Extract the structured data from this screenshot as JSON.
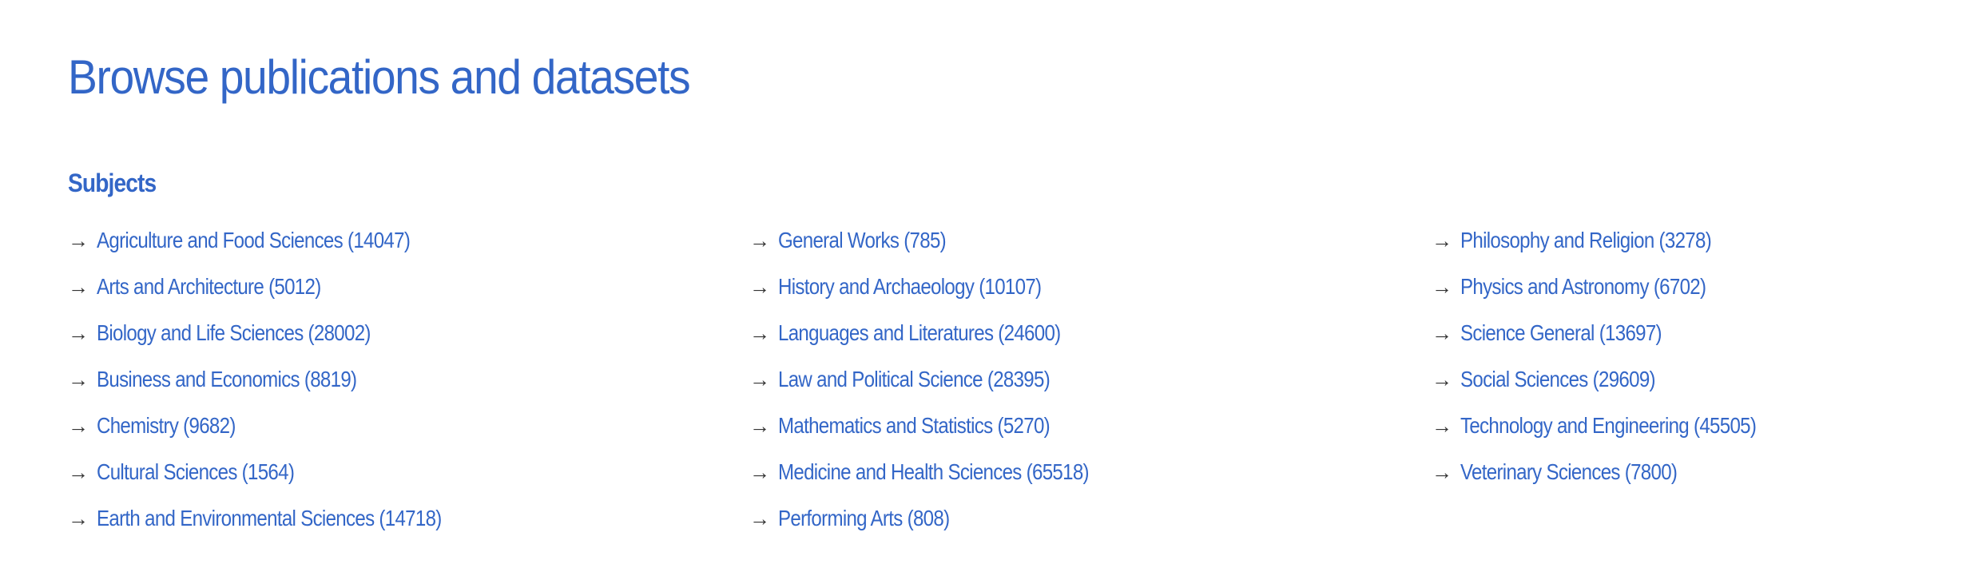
{
  "title": "Browse publications and datasets",
  "subjects_heading": "Subjects",
  "colors": {
    "link": "#3366c7",
    "arrow": "#333333"
  },
  "icons": {
    "bullet": "arrow-right-icon"
  },
  "columns": [
    [
      "Agriculture and Food Sciences (14047)",
      "Arts and Architecture (5012)",
      "Biology and Life Sciences (28002)",
      "Business and Economics (8819)",
      "Chemistry (9682)",
      "Cultural Sciences (1564)",
      "Earth and Environmental Sciences (14718)"
    ],
    [
      "General Works (785)",
      "History and Archaeology (10107)",
      "Languages and Literatures (24600)",
      "Law and Political Science (28395)",
      "Mathematics and Statistics (5270)",
      "Medicine and Health Sciences (65518)",
      "Performing Arts (808)"
    ],
    [
      "Philosophy and Religion (3278)",
      "Physics and Astronomy (6702)",
      "Science General (13697)",
      "Social Sciences (29609)",
      "Technology and Engineering (45505)",
      "Veterinary Sciences (7800)"
    ]
  ]
}
